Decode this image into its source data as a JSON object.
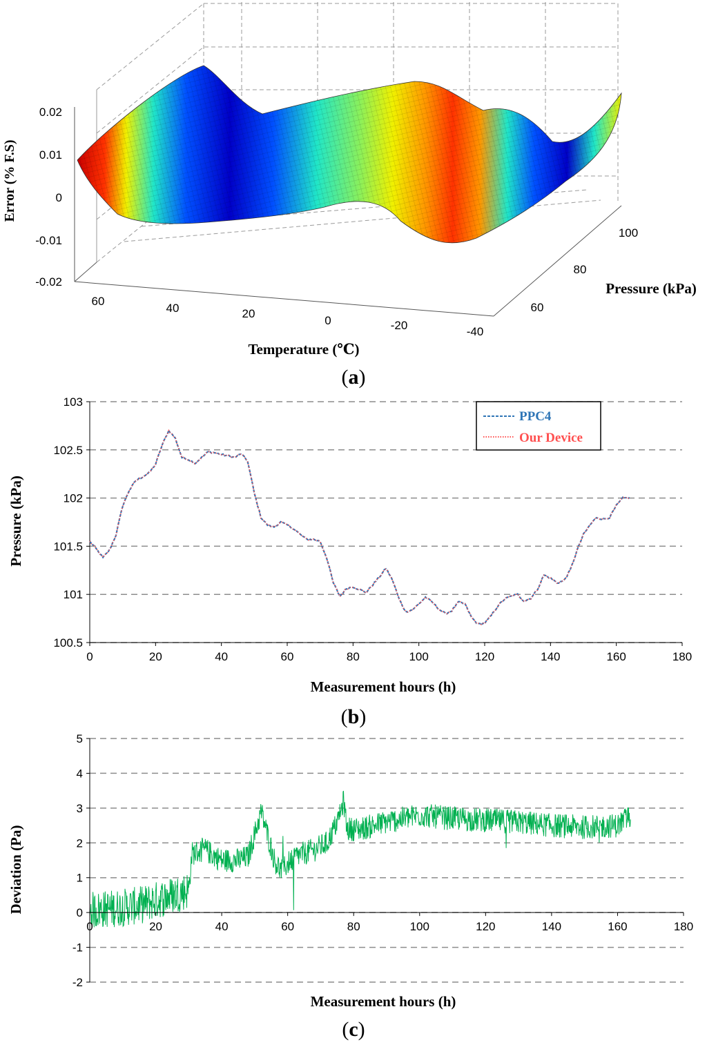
{
  "chart_data": [
    {
      "id": "a",
      "type": "surface3d",
      "caption_letter": "a",
      "zlabel": "Error (% F.S)",
      "xlabel": "Temperature (℃)",
      "ylabel": "Pressure (kPa)",
      "z_ticks": [
        "0.02",
        "0.01",
        "0",
        "-0.01",
        "-0.02"
      ],
      "x_ticks": [
        "60",
        "40",
        "20",
        "0",
        "-20",
        "-40"
      ],
      "y_ticks": [
        "100",
        "80",
        "60"
      ],
      "xlim": [
        -40,
        70
      ],
      "ylim": [
        50,
        110
      ],
      "zlim": [
        -0.02,
        0.02
      ],
      "colormap": [
        "#0000c8",
        "#0050ff",
        "#00b4ff",
        "#20e6c8",
        "#8cf05a",
        "#f0f000",
        "#ff9600",
        "#ff3200",
        "#c80000"
      ]
    },
    {
      "id": "b",
      "type": "line",
      "caption_letter": "b",
      "xlabel": "Measurement hours (h)",
      "ylabel": "Pressure (kPa)",
      "xlim": [
        0,
        180
      ],
      "ylim": [
        100.5,
        103
      ],
      "x_ticks": [
        "0",
        "20",
        "40",
        "60",
        "80",
        "100",
        "120",
        "140",
        "160",
        "180"
      ],
      "y_ticks": [
        "103",
        "102.5",
        "102",
        "101.5",
        "101",
        "100.5"
      ],
      "legend": [
        "PPC4",
        "Our Device"
      ],
      "series": [
        {
          "name": "PPC4",
          "color": "#2e75b6",
          "style": "dashed",
          "x": [
            0,
            2,
            4,
            6,
            8,
            10,
            12,
            14,
            16,
            18,
            20,
            22,
            24,
            26,
            28,
            30,
            32,
            34,
            36,
            38,
            40,
            42,
            44,
            46,
            48,
            50,
            52,
            54,
            56,
            58,
            60,
            62,
            64,
            66,
            68,
            70,
            72,
            74,
            76,
            78,
            80,
            82,
            84,
            86,
            88,
            90,
            92,
            94,
            96,
            98,
            100,
            102,
            104,
            106,
            108,
            110,
            112,
            114,
            116,
            118,
            120,
            122,
            124,
            126,
            128,
            130,
            132,
            134,
            136,
            138,
            140,
            142,
            144,
            146,
            148,
            150,
            152,
            154,
            156,
            158,
            160,
            162,
            164
          ],
          "values": [
            101.55,
            101.47,
            101.38,
            101.46,
            101.62,
            101.92,
            102.08,
            102.18,
            102.22,
            102.26,
            102.35,
            102.55,
            102.7,
            102.62,
            102.42,
            102.4,
            102.36,
            102.42,
            102.48,
            102.47,
            102.45,
            102.44,
            102.42,
            102.46,
            102.38,
            102.05,
            101.8,
            101.72,
            101.7,
            101.75,
            101.72,
            101.68,
            101.62,
            101.57,
            101.57,
            101.55,
            101.38,
            101.12,
            100.98,
            101.06,
            101.08,
            101.05,
            101.02,
            101.1,
            101.18,
            101.27,
            101.15,
            100.95,
            100.82,
            100.84,
            100.9,
            100.97,
            100.92,
            100.85,
            100.8,
            100.83,
            100.92,
            100.9,
            100.76,
            100.69,
            100.7,
            100.78,
            100.88,
            100.95,
            100.98,
            101.0,
            100.93,
            100.96,
            101.05,
            101.2,
            101.17,
            101.12,
            101.14,
            101.25,
            101.45,
            101.62,
            101.72,
            101.8,
            101.78,
            101.8,
            101.92,
            102.0,
            102.0
          ]
        },
        {
          "name": "Our Device",
          "color": "#ff5050",
          "style": "dotted"
        }
      ]
    },
    {
      "id": "c",
      "type": "line",
      "caption_letter": "c",
      "xlabel": "Measurement hours (h)",
      "ylabel": "Deviation (Pa)",
      "xlim": [
        0,
        180
      ],
      "ylim": [
        -2,
        5
      ],
      "x_ticks": [
        "0",
        "20",
        "40",
        "60",
        "80",
        "100",
        "120",
        "140",
        "160",
        "180"
      ],
      "y_ticks": [
        "5",
        "4",
        "3",
        "2",
        "1",
        "0",
        "-1",
        "-2"
      ],
      "series": [
        {
          "name": "Deviation",
          "color": "#00b050",
          "x": [
            0,
            5,
            10,
            15,
            20,
            25,
            30,
            31,
            35,
            40,
            45,
            48,
            52,
            56,
            58,
            62,
            68,
            72,
            75,
            77,
            78,
            82,
            90,
            95,
            100,
            110,
            120,
            130,
            140,
            150,
            160,
            164
          ],
          "values": [
            0.05,
            0.1,
            0.15,
            0.2,
            0.35,
            0.5,
            0.65,
            1.7,
            1.8,
            1.5,
            1.5,
            1.6,
            2.9,
            1.5,
            1.2,
            1.6,
            1.8,
            2.0,
            2.6,
            3.2,
            2.4,
            2.4,
            2.6,
            2.7,
            2.8,
            2.7,
            2.65,
            2.6,
            2.5,
            2.45,
            2.5,
            2.8
          ]
        }
      ]
    }
  ]
}
